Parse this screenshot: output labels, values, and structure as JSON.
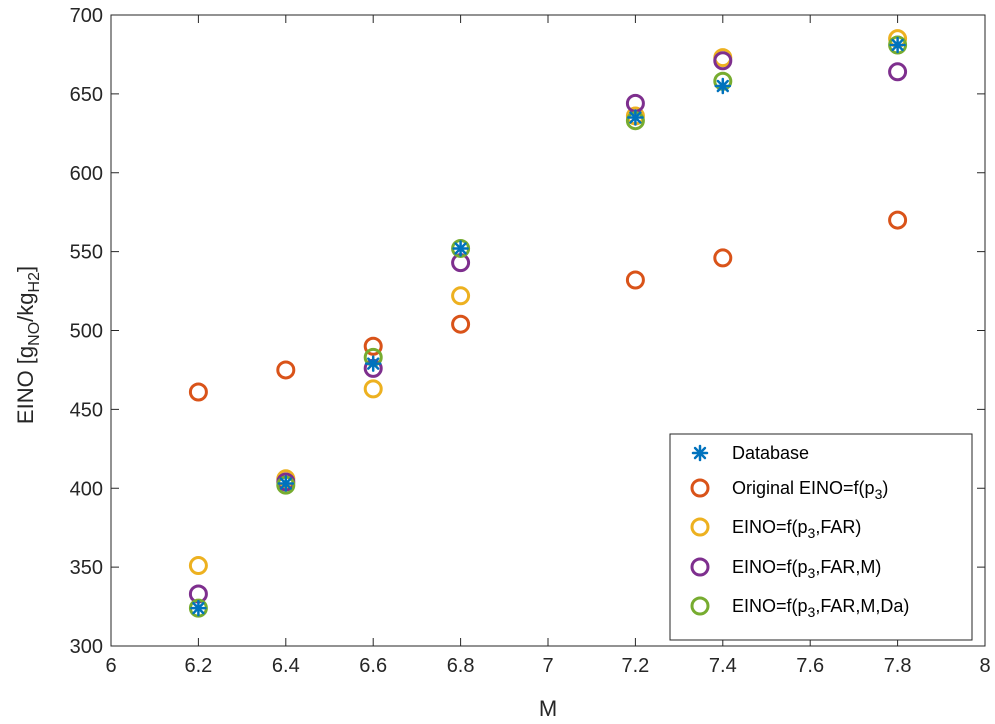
{
  "chart_data": {
    "type": "scatter",
    "xlabel": "M",
    "ylabel": {
      "base": "EINO [g",
      "sub1": "NO",
      "mid": "/kg",
      "sub2": "H2",
      "end": "]"
    },
    "xlim": [
      6,
      8
    ],
    "ylim": [
      300,
      700
    ],
    "xticks": [
      6,
      6.2,
      6.4,
      6.6,
      6.8,
      7,
      7.2,
      7.4,
      7.6,
      7.8,
      8
    ],
    "xtick_labels": [
      "6",
      "6.2",
      "6.4",
      "6.6",
      "6.8",
      "7",
      "7.2",
      "7.4",
      "7.6",
      "7.8",
      "8"
    ],
    "yticks": [
      300,
      350,
      400,
      450,
      500,
      550,
      600,
      650,
      700
    ],
    "ytick_labels": [
      "300",
      "350",
      "400",
      "450",
      "500",
      "550",
      "600",
      "650",
      "700"
    ],
    "grid": false,
    "legend_position": "bottom-right",
    "series": [
      {
        "name": "Database",
        "color": "#0072BD",
        "marker": "asterisk",
        "x": [
          6.2,
          6.4,
          6.6,
          6.8,
          7.2,
          7.4,
          7.8
        ],
        "y": [
          324,
          403,
          479,
          552,
          635,
          655,
          681
        ]
      },
      {
        "name": {
          "base": "Original EINO=f(p",
          "sub": "3",
          "end": ")"
        },
        "color": "#D95319",
        "marker": "circle",
        "x": [
          6.2,
          6.4,
          6.6,
          6.8,
          7.2,
          7.4,
          7.8
        ],
        "y": [
          461,
          475,
          490,
          504,
          532,
          546,
          570
        ]
      },
      {
        "name": {
          "base": "EINO=f(p",
          "sub": "3",
          "end": ",FAR)"
        },
        "color": "#EDB120",
        "marker": "circle",
        "x": [
          6.2,
          6.4,
          6.6,
          6.8,
          7.2,
          7.4,
          7.8
        ],
        "y": [
          351,
          406,
          463,
          522,
          636,
          673,
          685
        ]
      },
      {
        "name": {
          "base": "EINO=f(p",
          "sub": "3",
          "end": ",FAR,M)"
        },
        "color": "#7E2F8E",
        "marker": "circle",
        "x": [
          6.2,
          6.4,
          6.6,
          6.8,
          7.2,
          7.4,
          7.8
        ],
        "y": [
          333,
          404,
          476,
          543,
          644,
          671,
          664
        ]
      },
      {
        "name": {
          "base": "EINO=f(p",
          "sub": "3",
          "end": ",FAR,M,Da)"
        },
        "color": "#77AC30",
        "marker": "circle",
        "x": [
          6.2,
          6.4,
          6.6,
          6.8,
          7.2,
          7.4,
          7.8
        ],
        "y": [
          324,
          402,
          483,
          552,
          633,
          658,
          681
        ]
      }
    ]
  }
}
